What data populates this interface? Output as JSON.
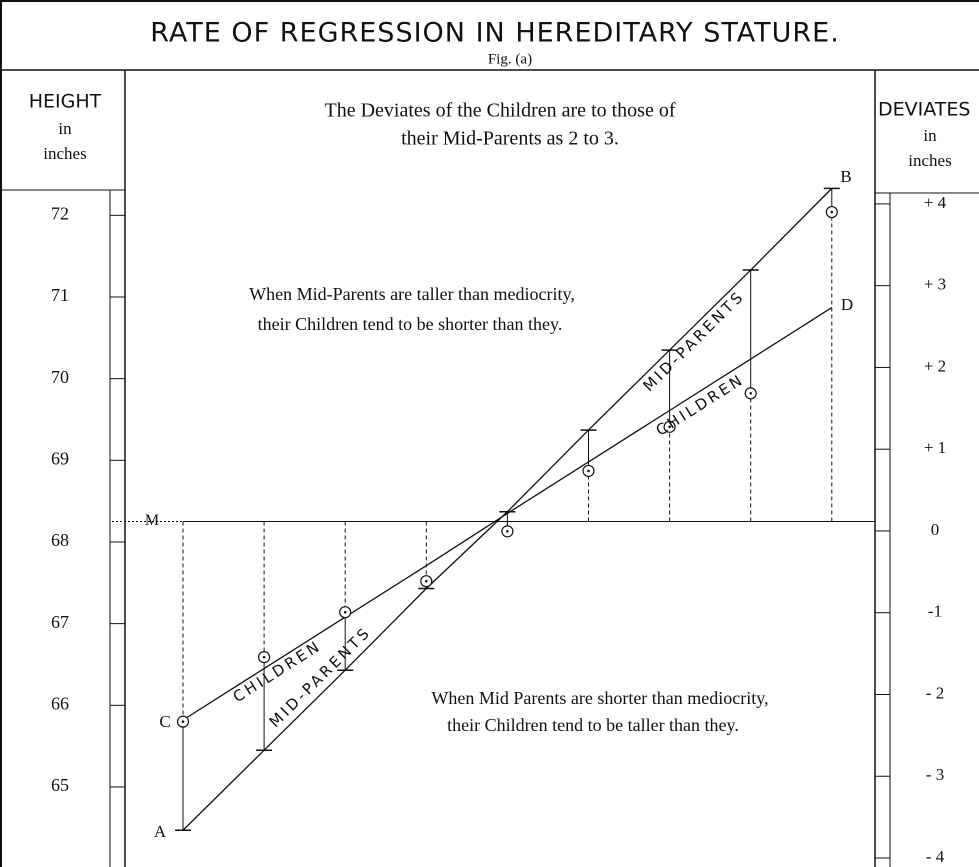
{
  "chart_data": {
    "type": "line",
    "title": "RATE OF REGRESSION IN HEREDITARY STATURE.",
    "subtitle": "Fig. (a)",
    "description": [
      "The Deviates of the Children are to those of",
      "their Mid-Parents as 2 to 3."
    ],
    "y_axis_label": [
      "HEIGHT",
      "in",
      "inches"
    ],
    "y2_axis_label": [
      "DEVIATES",
      "in",
      "inches"
    ],
    "annotations": [
      [
        "When Mid-Parents are taller than mediocrity,",
        "their Children tend to be shorter than they."
      ],
      [
        "When Mid Parents are shorter than mediocrity,",
        "their Children tend to be taller than they."
      ]
    ],
    "point_labels": [
      "A",
      "B",
      "C",
      "D"
    ],
    "mediocrity": {
      "label": "M",
      "value": 68.25
    },
    "categories": [
      null,
      null,
      null,
      null,
      null,
      null,
      null,
      null,
      null
    ],
    "series": [
      {
        "name": "MID-PARENTS",
        "color": "#111111",
        "values": [
          64.47,
          65.45,
          66.43,
          67.43,
          68.37,
          69.37,
          70.35,
          71.33,
          72.33
        ]
      },
      {
        "name": "CHILDREN",
        "color": "#111111",
        "values": [
          65.82,
          66.45,
          67.08,
          67.71,
          68.35,
          68.98,
          69.61,
          70.24,
          70.87
        ]
      }
    ],
    "observed": {
      "color": "#111111",
      "values": [
        65.8,
        66.59,
        67.14,
        67.52,
        68.13,
        68.87,
        69.41,
        69.82,
        72.04
      ]
    },
    "ylim": [
      64.02,
      72.31
    ],
    "yticks": [
      65,
      66,
      67,
      68,
      69,
      70,
      71,
      72
    ],
    "y2lim": [
      -4.11,
      4.17
    ],
    "y2ticks": [
      {
        "value": -4,
        "label": "- 4"
      },
      {
        "value": -3,
        "label": "- 3"
      },
      {
        "value": -2,
        "label": "- 2"
      },
      -1,
      0,
      {
        "value": 1,
        "label": "+ 1"
      },
      {
        "value": 2,
        "label": "+ 2"
      },
      {
        "value": 3,
        "label": "+ 3"
      },
      {
        "value": 4,
        "label": "+ 4"
      }
    ]
  }
}
